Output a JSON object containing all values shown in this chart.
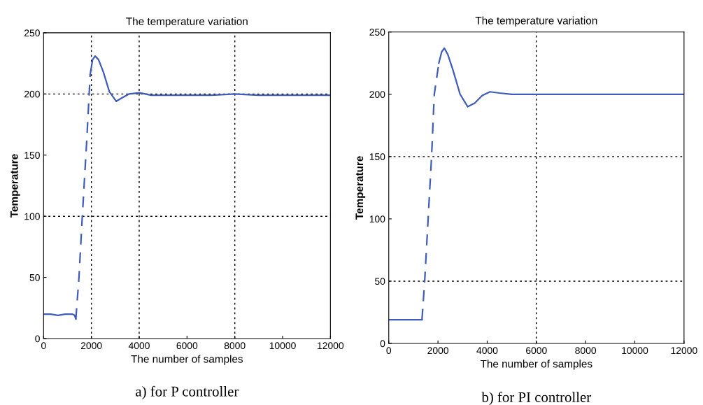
{
  "chart_data": [
    {
      "type": "line",
      "title": "The temperature variation",
      "xlabel": "The number of samples",
      "ylabel": "Temperature",
      "xlim": [
        0,
        12000
      ],
      "ylim": [
        0,
        250
      ],
      "xticks": [
        0,
        2000,
        4000,
        6000,
        8000,
        10000,
        12000
      ],
      "yticks": [
        0,
        50,
        100,
        150,
        200,
        250
      ],
      "grid": false,
      "marker": "none",
      "series": [
        {
          "color": "#3f5cb8",
          "line_style": "solid",
          "x": [
            0,
            300,
            600,
            900,
            1200,
            1300,
            1350
          ],
          "values": [
            20,
            20,
            19,
            20,
            20,
            19,
            16
          ]
        },
        {
          "color": "#3f5cb8",
          "line_style": "dashed",
          "x": [
            1350,
            1480,
            1620,
            1800,
            1950
          ],
          "values": [
            16,
            50,
            100,
            160,
            216
          ]
        },
        {
          "color": "#3f5cb8",
          "line_style": "solid",
          "x": [
            1950,
            2050,
            2155,
            2300,
            2500,
            2750,
            3040,
            3300,
            3580,
            4010,
            4500,
            5000,
            6000,
            7000,
            8000,
            9000,
            10000,
            11000,
            12000
          ],
          "values": [
            216,
            228,
            231,
            228,
            218,
            202,
            194,
            197,
            200,
            201,
            199,
            199,
            199,
            199,
            200,
            199,
            199,
            199,
            199
          ]
        }
      ],
      "ref_lines": [
        {
          "axis": "x",
          "value": 2000,
          "color": "#000000",
          "line_style": "dotted"
        },
        {
          "axis": "x",
          "value": 4000,
          "color": "#000000",
          "line_style": "dotted"
        },
        {
          "axis": "x",
          "value": 8000,
          "color": "#000000",
          "line_style": "dotted"
        },
        {
          "axis": "y",
          "value": 100,
          "color": "#000000",
          "line_style": "dotted"
        },
        {
          "axis": "y",
          "value": 200,
          "color": "#000000",
          "line_style": "dotted"
        }
      ],
      "annotations": [
        "a) for P controller"
      ]
    },
    {
      "type": "line",
      "title": "The temperature variation",
      "xlabel": "The number of samples",
      "ylabel": "Temperature",
      "xlim": [
        0,
        12000
      ],
      "ylim": [
        0,
        250
      ],
      "xticks": [
        0,
        2000,
        4000,
        6000,
        8000,
        10000,
        12000
      ],
      "yticks": [
        0,
        50,
        100,
        150,
        200,
        250
      ],
      "grid": false,
      "marker": "none",
      "series": [
        {
          "color": "#3f5cb8",
          "line_style": "solid",
          "x": [
            0,
            300,
            600,
            900,
            1200,
            1350
          ],
          "values": [
            19,
            19,
            19,
            19,
            19,
            19
          ]
        },
        {
          "color": "#3f5cb8",
          "line_style": "dashed",
          "x": [
            1350,
            1460,
            1600,
            1740,
            1850,
            2035
          ],
          "values": [
            19,
            50,
            100,
            150,
            200,
            225
          ]
        },
        {
          "color": "#3f5cb8",
          "line_style": "solid",
          "x": [
            2035,
            2150,
            2257,
            2400,
            2600,
            2900,
            3210,
            3500,
            3800,
            4115,
            4500,
            5000,
            6000,
            7000,
            8000,
            9000,
            10000,
            11000,
            12000
          ],
          "values": [
            225,
            234,
            237,
            232,
            220,
            200,
            190,
            193,
            199,
            202,
            201,
            200,
            200,
            200,
            200,
            200,
            200,
            200,
            200
          ]
        }
      ],
      "ref_lines": [
        {
          "axis": "x",
          "value": 6000,
          "color": "#000000",
          "line_style": "dotted"
        },
        {
          "axis": "y",
          "value": 50,
          "color": "#000000",
          "line_style": "dotted"
        },
        {
          "axis": "y",
          "value": 150,
          "color": "#000000",
          "line_style": "dotted"
        }
      ],
      "annotations": [
        "b) for PI controller"
      ]
    }
  ]
}
